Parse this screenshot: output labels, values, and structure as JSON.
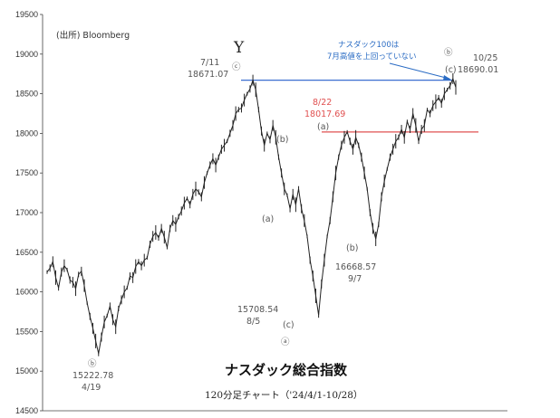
{
  "source": "(出所) Bloomberg",
  "chart_data": {
    "type": "line",
    "title": "ナスダック総合指数",
    "subtitle": "120分足チャート（'24/4/1-10/28）",
    "ylim": [
      14500,
      19500
    ],
    "yticks": [
      14500,
      15000,
      15500,
      16000,
      16500,
      17000,
      17500,
      18000,
      18500,
      19000,
      19500
    ],
    "ytick_labels": [
      "14500",
      "15000",
      "15500",
      "16000",
      "16500",
      "17000",
      "17500",
      "18000",
      "18500",
      "19000",
      "19500"
    ],
    "series": [
      {
        "values": [
          16250,
          16300,
          16380,
          16180,
          16050,
          16250,
          16330,
          16280,
          16150,
          16120,
          16040,
          16220,
          16260,
          16080,
          15860,
          15690,
          15540,
          15380,
          15223,
          15430,
          15620,
          15700,
          15820,
          15650,
          15560,
          15790,
          15900,
          16000,
          16050,
          16200,
          16180,
          16320,
          16380,
          16330,
          16400,
          16430,
          16600,
          16700,
          16750,
          16680,
          16800,
          16690,
          16560,
          16800,
          16900,
          16850,
          16950,
          17020,
          17120,
          17180,
          17100,
          17230,
          17300,
          17260,
          17200,
          17380,
          17500,
          17600,
          17680,
          17600,
          17700,
          17800,
          17850,
          17900,
          18000,
          18100,
          18250,
          18300,
          18320,
          18420,
          18500,
          18560,
          18671,
          18550,
          18300,
          18030,
          17850,
          18000,
          17920,
          18100,
          17950,
          17700,
          17500,
          17300,
          17220,
          17050,
          17230,
          17100,
          17300,
          17050,
          16900,
          16700,
          16400,
          16200,
          15950,
          15708,
          16100,
          16400,
          16700,
          16900,
          17200,
          17500,
          17700,
          17850,
          17950,
          18018,
          17900,
          17800,
          17950,
          17850,
          17700,
          17500,
          17300,
          17000,
          16800,
          16669,
          16850,
          17200,
          17400,
          17550,
          17700,
          17800,
          17900,
          17950,
          18050,
          17950,
          18150,
          18050,
          18250,
          18100,
          17900,
          18050,
          18100,
          18300,
          18250,
          18350,
          18400,
          18450,
          18380,
          18500,
          18550,
          18600,
          18690,
          18580
        ]
      }
    ],
    "reference_lines": [
      {
        "value": 18671.07,
        "color": "#3b6fd0"
      },
      {
        "value": 18017.69,
        "color": "#e05050"
      }
    ],
    "annotations": {
      "y_label": "Y",
      "note_line1": "ナスダック100は",
      "note_line2": "7月高値を上回っていない",
      "p1_wave": "ⓑ",
      "p1_value": "15222.78",
      "p1_date": "4/19",
      "p2_wave": "ⓒ",
      "p2_date": "7/11",
      "p2_value": "18671.07",
      "p3_wave": "(a)",
      "p4_wave": "(b)",
      "p5_wave": "(c)",
      "p5_circ": "ⓐ",
      "p5_value": "15708.54",
      "p5_date": "8/5",
      "p6_date": "8/22",
      "p6_value": "18017.69",
      "p6_wave": "(a)",
      "p7_wave": "(b)",
      "p7_value": "16668.57",
      "p7_date": "9/7",
      "p8_circ": "ⓑ",
      "p8_wave": "(c)",
      "p8_date": "10/25",
      "p8_value": "18690.01"
    }
  }
}
